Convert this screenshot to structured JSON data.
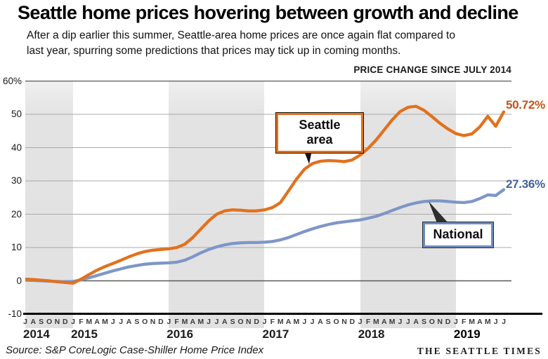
{
  "header": {
    "title": "Seattle home prices hovering between growth and decline",
    "subtitle_line1": "After a dip earlier this summer, Seattle-area home prices are once again flat compared to",
    "subtitle_line2": "last year, spurring some predictions that prices may tick up in coming months."
  },
  "chart": {
    "heading": "PRICE CHANGE SINCE JULY 2014",
    "seattle_callout": "Seattle area",
    "national_callout": "National",
    "seattle_end_label": "50.72%",
    "national_end_label": "27.36%",
    "colors": {
      "seattle_line": "#E2711D",
      "national_line": "#7E96C8",
      "seattle_label_text": "#C35318",
      "national_label_text": "#44609E",
      "shaded_band": "#E2E2E2",
      "gridline": "#A8A8A8",
      "gridline_strong": "#595959"
    }
  },
  "chart_data": {
    "type": "line",
    "title": "PRICE CHANGE SINCE JULY 2014",
    "x_unit": "month",
    "x_start": "July 2014",
    "x_end": "July 2019",
    "month_letters": "JASONDJFMAMJJASONDJFMAMJJASONDJFMAMJJASONDJFMAMJJASONDJFMAMJJ",
    "years": [
      {
        "label": "2014",
        "month_index": 0,
        "strong": false
      },
      {
        "label": "2015",
        "month_index": 6,
        "strong": false
      },
      {
        "label": "2016",
        "month_index": 18,
        "strong": false
      },
      {
        "label": "2017",
        "month_index": 30,
        "strong": false
      },
      {
        "label": "2018",
        "month_index": 42,
        "strong": false
      },
      {
        "label": "2019",
        "month_index": 54,
        "strong": true
      }
    ],
    "ylim": [
      -10,
      60
    ],
    "y_ticks": [
      {
        "label": "60%",
        "value": 60
      },
      {
        "label": "50",
        "value": 50
      },
      {
        "label": "40",
        "value": 40
      },
      {
        "label": "30",
        "value": 30
      },
      {
        "label": "20",
        "value": 20
      },
      {
        "label": "10",
        "value": 10
      },
      {
        "label": "0",
        "value": 0
      },
      {
        "label": "-10",
        "value": -10
      }
    ],
    "shaded_month_ranges": [
      [
        0,
        6
      ],
      [
        18,
        30
      ],
      [
        42,
        54
      ]
    ],
    "grid": "horizontal-only",
    "legend_position": "inline-callouts",
    "series": [
      {
        "name": "Seattle area",
        "color": "#E2711D",
        "end_value": 50.72,
        "values": [
          0.5,
          0.4,
          0.2,
          0,
          -0.3,
          -0.5,
          -0.7,
          0.5,
          1.9,
          3.2,
          4.3,
          5.2,
          6.2,
          7.2,
          8.1,
          8.8,
          9.2,
          9.4,
          9.6,
          10,
          11,
          13,
          15.5,
          18,
          20,
          21,
          21.3,
          21.2,
          21,
          21,
          21.3,
          22,
          23.5,
          27,
          30.5,
          33.5,
          35.2,
          35.9,
          36.1,
          36,
          35.8,
          36.3,
          37.8,
          39.8,
          42.3,
          45.3,
          48.3,
          50.8,
          52.1,
          52.4,
          51.2,
          49.3,
          47.3,
          45.6,
          44.2,
          43.6,
          44.1,
          46.2,
          49.4,
          46.4,
          50.72
        ]
      },
      {
        "name": "National",
        "color": "#7E96C8",
        "end_value": 27.36,
        "values": [
          0.2,
          0.1,
          0,
          -0.1,
          -0.2,
          -0.3,
          -0.2,
          0.3,
          0.9,
          1.6,
          2.3,
          3,
          3.6,
          4.2,
          4.6,
          5,
          5.2,
          5.3,
          5.4,
          5.6,
          6.2,
          7.2,
          8.4,
          9.4,
          10.2,
          10.8,
          11.2,
          11.4,
          11.5,
          11.5,
          11.6,
          11.8,
          12.3,
          13,
          13.9,
          14.8,
          15.6,
          16.3,
          16.9,
          17.4,
          17.7,
          18,
          18.3,
          18.8,
          19.4,
          20.2,
          21.1,
          22,
          22.8,
          23.4,
          23.8,
          24,
          24,
          23.8,
          23.6,
          23.5,
          23.8,
          24.7,
          25.8,
          25.6,
          27.36
        ]
      }
    ]
  },
  "footer": {
    "source": "Source: S&P CoreLogic Case-Shiller Home Price Index",
    "credit": "THE SEATTLE TIMES"
  }
}
